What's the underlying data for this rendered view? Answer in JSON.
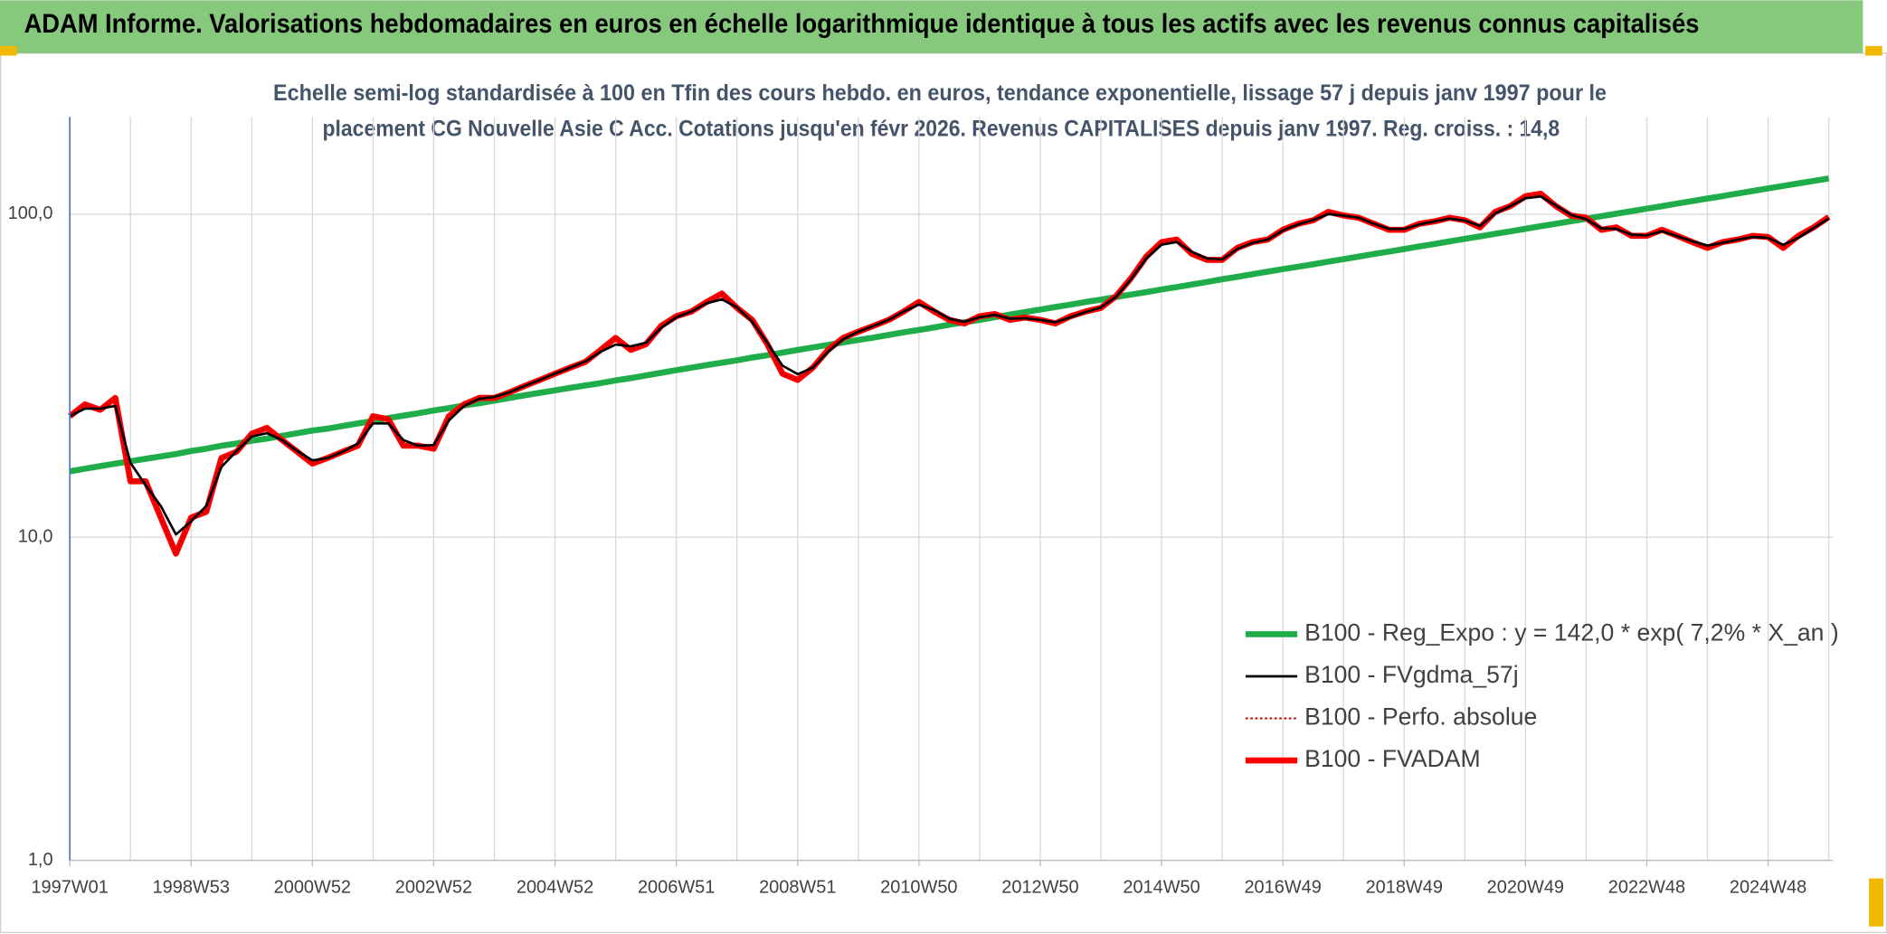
{
  "chart_data": {
    "type": "line",
    "title": "ADAM Informe. Valorisations hebdomadaires en euros en échelle logarithmique identique à tous les actifs avec les revenus connus capitalisés",
    "subtitle": [
      "Echelle semi-log standardisée à 100 en Tfin des cours hebdo. en euros, tendance exponentielle, lissage 57 j depuis janv 1997 pour le",
      "placement CG Nouvelle Asie C Acc. Cotations jusqu'en févr 2026. Revenus CAPITALISES depuis janv 1997. Reg. croiss. : 14,8"
    ],
    "categories": [
      "1997W01",
      null,
      null,
      null,
      null,
      null,
      null,
      null,
      "1998W53",
      null,
      null,
      null,
      null,
      null,
      null,
      null,
      "2000W52",
      null,
      null,
      null,
      null,
      null,
      null,
      null,
      "2002W52",
      null,
      null,
      null,
      null,
      null,
      null,
      null,
      "2004W52",
      null,
      null,
      null,
      null,
      null,
      null,
      null,
      "2006W51",
      null,
      null,
      null,
      null,
      null,
      null,
      null,
      "2008W51",
      null,
      null,
      null,
      null,
      null,
      null,
      null,
      "2010W50",
      null,
      null,
      null,
      null,
      null,
      null,
      null,
      "2012W50",
      null,
      null,
      null,
      null,
      null,
      null,
      null,
      "2014W50",
      null,
      null,
      null,
      null,
      null,
      null,
      null,
      "2016W49",
      null,
      null,
      null,
      null,
      null,
      null,
      null,
      "2018W49",
      null,
      null,
      null,
      null,
      null,
      null,
      null,
      "2020W49",
      null,
      null,
      null,
      null,
      null,
      null,
      null,
      "2022W48",
      null,
      null,
      null,
      null,
      null,
      null,
      null,
      "2024W48",
      null,
      null,
      null,
      null
    ],
    "log_scale": true,
    "ylim": [
      1,
      200
    ],
    "yticks": [
      {
        "value": 1,
        "label": "1,0"
      },
      {
        "value": 10,
        "label": "10,0"
      },
      {
        "value": 100,
        "label": "100,0"
      }
    ],
    "grid": true,
    "legend": "lower right",
    "series": [
      {
        "name": "B100 - Reg_Expo : y = 142,0 * exp( 7,2% *  X_an )",
        "color": "#1fad4a",
        "line_style": "thick",
        "values": [
          16.0,
          16.3,
          16.6,
          16.9,
          17.2,
          17.5,
          17.8,
          18.1,
          18.5,
          18.8,
          19.2,
          19.5,
          19.9,
          20.2,
          20.6,
          21.0,
          21.4,
          21.7,
          22.1,
          22.5,
          22.9,
          23.4,
          23.8,
          24.2,
          24.7,
          25.1,
          25.6,
          26.0,
          26.5,
          27.0,
          27.5,
          28.0,
          28.5,
          29.0,
          29.5,
          30.0,
          30.6,
          31.1,
          31.7,
          32.3,
          32.9,
          33.5,
          34.1,
          34.7,
          35.3,
          36.0,
          36.6,
          37.3,
          38.0,
          38.7,
          39.4,
          40.1,
          40.8,
          41.5,
          42.3,
          43.1,
          43.8,
          44.6,
          45.5,
          46.3,
          47.1,
          48.0,
          48.9,
          49.8,
          50.7,
          51.6,
          52.5,
          53.5,
          54.4,
          55.4,
          56.4,
          57.4,
          58.5,
          59.5,
          60.6,
          61.7,
          62.9,
          64.0,
          65.2,
          66.4,
          67.6,
          68.8,
          70.0,
          71.3,
          72.6,
          73.9,
          75.3,
          76.6,
          78.0,
          79.5,
          80.9,
          82.4,
          83.9,
          85.4,
          87.0,
          88.5,
          90.1,
          91.8,
          93.4,
          95.1,
          96.8,
          98.6,
          100.4,
          102.2,
          104.1,
          105.9,
          107.9,
          109.8,
          111.8,
          113.8,
          115.9,
          118.0,
          120.2,
          122.4,
          124.6,
          126.8,
          129.1
        ]
      },
      {
        "name": "B100 - FVgdma_57j",
        "color": "#000000",
        "line_style": "thin",
        "values": [
          23.7,
          25.0,
          25.0,
          25.5,
          17.0,
          14.5,
          12.5,
          10.2,
          11.2,
          12.5,
          16.5,
          18.5,
          20.5,
          21.0,
          20.0,
          18.5,
          17.3,
          17.6,
          18.4,
          19.5,
          22.5,
          22.5,
          20.0,
          19.2,
          19.3,
          23.0,
          25.5,
          26.8,
          27.2,
          28.1,
          29.4,
          30.7,
          32.1,
          33.5,
          35.0,
          37.5,
          39.5,
          39.0,
          40.0,
          44.5,
          48.0,
          50.0,
          53.0,
          54.5,
          51.5,
          46.5,
          40.0,
          34.0,
          32.0,
          33.5,
          37.5,
          41.0,
          43.3,
          45.1,
          47.1,
          50.0,
          52.5,
          50.5,
          47.5,
          46.5,
          48.0,
          48.8,
          47.5,
          47.6,
          47.1,
          46.3,
          48.0,
          49.8,
          51.5,
          55.5,
          63.0,
          73.0,
          80.5,
          82.0,
          76.5,
          73.0,
          72.5,
          78.0,
          81.5,
          83.5,
          89.0,
          93.0,
          96.0,
          100.0,
          99.0,
          97.5,
          93.5,
          90.0,
          90.0,
          93.0,
          95.0,
          97.0,
          95.5,
          92.0,
          100.5,
          106.0,
          112.0,
          113.5,
          106.5,
          99.5,
          96.5,
          90.5,
          90.0,
          86.5,
          86.0,
          88.5,
          85.5,
          82.5,
          80.0,
          81.5,
          83.5,
          85.0,
          84.5,
          80.5,
          84.5,
          90.5,
          97.0
        ]
      },
      {
        "name": "B100 - Perfo. absolue",
        "color": "#c00000",
        "line_style": "dotted",
        "values": [
          23.7,
          25.8,
          24.8,
          27.0,
          14.9,
          14.9,
          11.5,
          8.9,
          11.5,
          12.0,
          17.6,
          18.4,
          20.9,
          21.8,
          20.0,
          18.4,
          16.9,
          17.6,
          18.4,
          19.2,
          23.7,
          23.2,
          19.2,
          19.2,
          18.8,
          23.7,
          25.8,
          27.0,
          27.0,
          28.1,
          29.4,
          30.7,
          32.1,
          33.5,
          34.9,
          38.0,
          41.4,
          38.0,
          39.6,
          45.1,
          48.3,
          50.0,
          53.5,
          56.8,
          51.3,
          47.1,
          39.6,
          32.1,
          30.7,
          33.5,
          38.0,
          41.4,
          43.3,
          45.1,
          47.1,
          50.0,
          53.5,
          50.0,
          47.1,
          45.9,
          48.3,
          49.1,
          47.1,
          47.9,
          47.1,
          45.9,
          48.3,
          50.0,
          51.3,
          55.8,
          63.5,
          74.0,
          82.0,
          83.5,
          75.4,
          72.2,
          72.2,
          78.7,
          82.0,
          83.5,
          89.5,
          93.4,
          95.8,
          101.7,
          99.1,
          97.5,
          93.4,
          89.5,
          89.5,
          93.4,
          95.0,
          97.5,
          95.8,
          91.0,
          101.7,
          106.0,
          113.7,
          115.7,
          106.0,
          99.0,
          97.5,
          89.5,
          91.0,
          85.7,
          85.7,
          89.5,
          85.7,
          82.0,
          78.7,
          82.0,
          83.5,
          85.7,
          85.0,
          78.7,
          85.7,
          91.0,
          98.0
        ]
      },
      {
        "name": "B100 - FVADAM",
        "color": "#ff0000",
        "line_style": "thick",
        "values": [
          23.7,
          25.8,
          24.8,
          27.0,
          14.9,
          14.9,
          11.5,
          8.9,
          11.5,
          12.0,
          17.6,
          18.4,
          20.9,
          21.8,
          20.0,
          18.4,
          16.9,
          17.6,
          18.4,
          19.2,
          23.7,
          23.2,
          19.2,
          19.2,
          18.8,
          23.7,
          25.8,
          27.0,
          27.0,
          28.1,
          29.4,
          30.7,
          32.1,
          33.5,
          34.9,
          38.0,
          41.4,
          38.0,
          39.6,
          45.1,
          48.3,
          50.0,
          53.5,
          56.8,
          51.3,
          47.1,
          39.6,
          32.1,
          30.7,
          33.5,
          38.0,
          41.4,
          43.3,
          45.1,
          47.1,
          50.0,
          53.5,
          50.0,
          47.1,
          45.9,
          48.3,
          49.1,
          47.1,
          47.9,
          47.1,
          45.9,
          48.3,
          50.0,
          51.3,
          55.8,
          63.5,
          74.0,
          82.0,
          83.5,
          75.4,
          72.2,
          72.2,
          78.7,
          82.0,
          83.5,
          89.5,
          93.4,
          95.8,
          101.7,
          99.1,
          97.5,
          93.4,
          89.5,
          89.5,
          93.4,
          95.0,
          97.5,
          95.8,
          91.0,
          101.7,
          106.0,
          113.7,
          115.7,
          106.0,
          99.0,
          97.5,
          89.5,
          91.0,
          85.7,
          85.7,
          89.5,
          85.7,
          82.0,
          78.7,
          82.0,
          83.5,
          85.7,
          85.0,
          78.7,
          85.7,
          91.0,
          98.0
        ]
      }
    ]
  }
}
